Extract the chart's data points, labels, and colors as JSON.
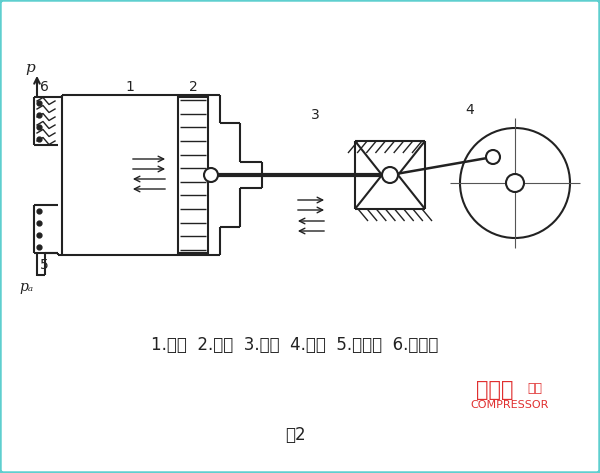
{
  "bg_color": "#ffffff",
  "border_color": "#5ecfcf",
  "border_lw": 2.5,
  "line_color": "#222222",
  "label_text": "1.气缸  2.活塞  3.连杆  4.曲柄  5.进气阁  6.出气阁",
  "caption": "图2",
  "wm1": "压缩机",
  "wm2": "COMPRESSOR",
  "wm3": "杂志",
  "p_label": "p",
  "pa_label": "pₐ",
  "figsize": [
    6.0,
    4.73
  ],
  "dpi": 100
}
